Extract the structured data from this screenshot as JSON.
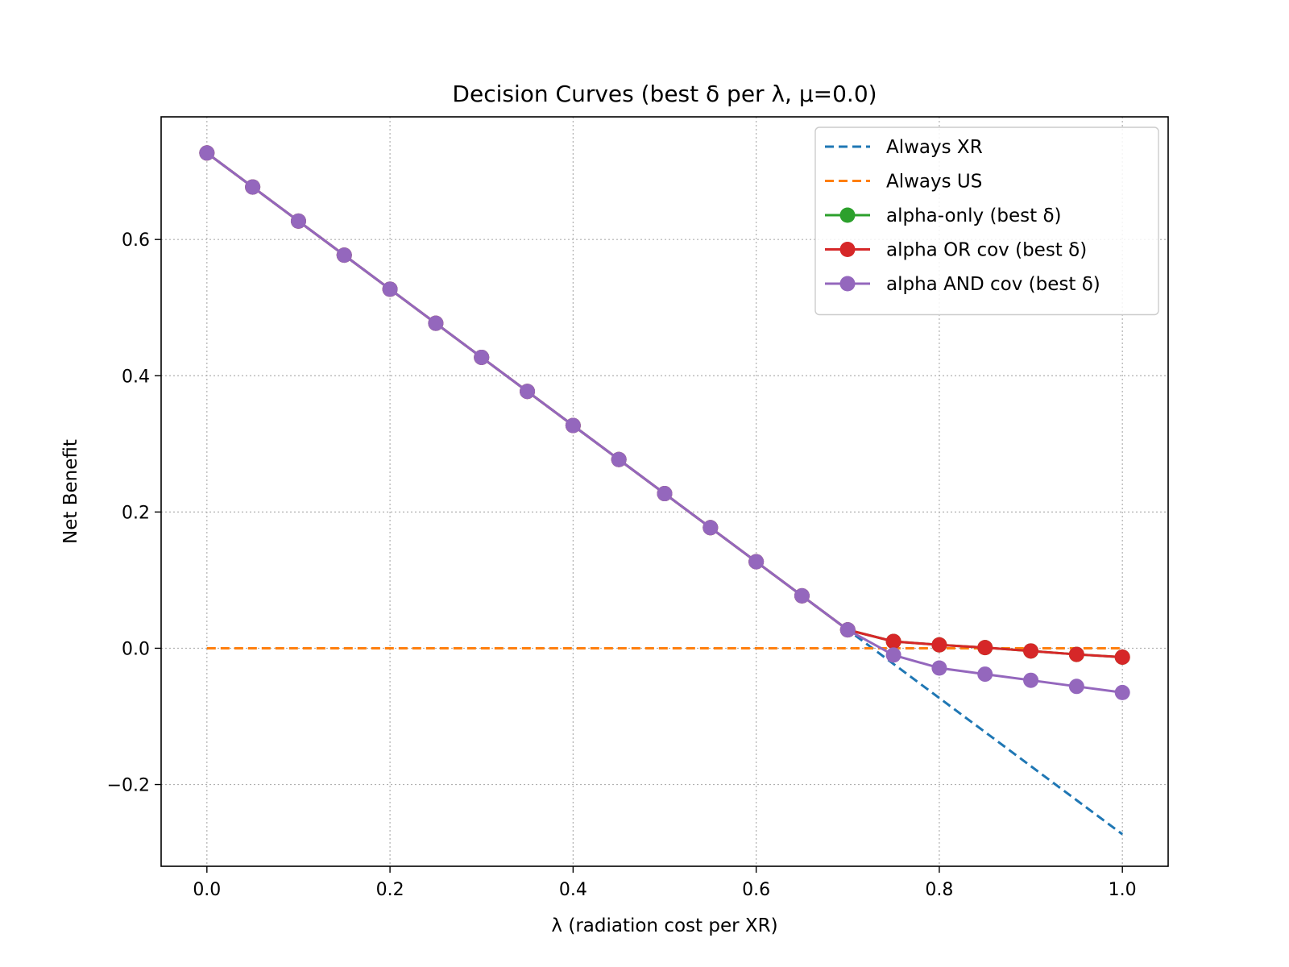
{
  "chart_data": {
    "type": "line",
    "title": "Decision Curves (best δ per λ, μ=0.0)",
    "xlabel": "λ (radiation cost per XR)",
    "ylabel": "Net Benefit",
    "xlim": [
      -0.05,
      1.05
    ],
    "ylim": [
      -0.32,
      0.78
    ],
    "xticks": [
      0.0,
      0.2,
      0.4,
      0.6,
      0.8,
      1.0
    ],
    "xtick_labels": [
      "0.0",
      "0.2",
      "0.4",
      "0.6",
      "0.8",
      "1.0"
    ],
    "yticks": [
      -0.2,
      0.0,
      0.2,
      0.4,
      0.6
    ],
    "ytick_labels": [
      "−0.2",
      "0.0",
      "0.2",
      "0.4",
      "0.6"
    ],
    "grid": true,
    "legend_position": "top-right",
    "x": [
      0.0,
      0.05,
      0.1,
      0.15,
      0.2,
      0.25,
      0.3,
      0.35,
      0.4,
      0.45,
      0.5,
      0.55,
      0.6,
      0.65,
      0.7,
      0.75,
      0.8,
      0.85,
      0.9,
      0.95,
      1.0
    ],
    "series": [
      {
        "name": "Always XR",
        "color": "#1f77b4",
        "style": "dashed",
        "marker": "none",
        "values": [
          0.727,
          0.677,
          0.627,
          0.577,
          0.527,
          0.477,
          0.427,
          0.377,
          0.327,
          0.277,
          0.227,
          0.177,
          0.127,
          0.077,
          0.027,
          -0.023,
          -0.073,
          -0.123,
          -0.173,
          -0.223,
          -0.273
        ]
      },
      {
        "name": "Always US",
        "color": "#ff7f0e",
        "style": "dashed",
        "marker": "none",
        "values": [
          0,
          0,
          0,
          0,
          0,
          0,
          0,
          0,
          0,
          0,
          0,
          0,
          0,
          0,
          0,
          0,
          0,
          0,
          0,
          0,
          0
        ]
      },
      {
        "name": "alpha-only (best δ)",
        "color": "#2ca02c",
        "style": "solid",
        "marker": "circle",
        "values": [
          0.727,
          0.677,
          0.627,
          0.577,
          0.527,
          0.477,
          0.427,
          0.377,
          0.327,
          0.277,
          0.227,
          0.177,
          0.127,
          0.077,
          0.027,
          0.01,
          0.005,
          0.001,
          -0.004,
          -0.009,
          -0.013
        ]
      },
      {
        "name": "alpha OR cov (best δ)",
        "color": "#d62728",
        "style": "solid",
        "marker": "circle",
        "values": [
          0.727,
          0.677,
          0.627,
          0.577,
          0.527,
          0.477,
          0.427,
          0.377,
          0.327,
          0.277,
          0.227,
          0.177,
          0.127,
          0.077,
          0.027,
          0.01,
          0.005,
          0.001,
          -0.004,
          -0.009,
          -0.013
        ]
      },
      {
        "name": "alpha AND cov (best δ)",
        "color": "#9467bd",
        "style": "solid",
        "marker": "circle",
        "values": [
          0.727,
          0.677,
          0.627,
          0.577,
          0.527,
          0.477,
          0.427,
          0.377,
          0.327,
          0.277,
          0.227,
          0.177,
          0.127,
          0.077,
          0.027,
          -0.01,
          -0.029,
          -0.038,
          -0.047,
          -0.056,
          -0.065
        ]
      }
    ]
  }
}
